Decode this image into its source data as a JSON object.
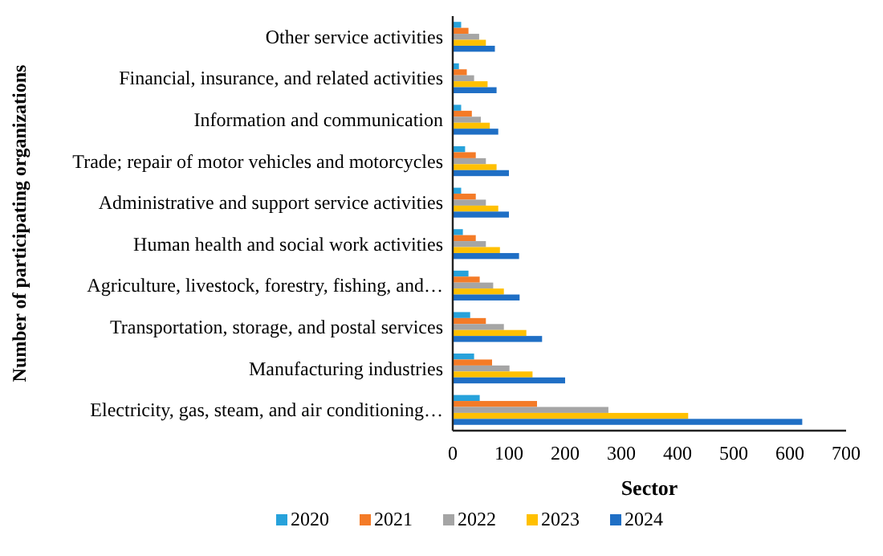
{
  "chart_data": {
    "type": "bar",
    "orientation": "horizontal",
    "xlabel": "Sector",
    "ylabel": "Number of participating organizations",
    "categories": [
      "Other service activities",
      "Financial, insurance, and related activities",
      "Information and communication",
      "Trade; repair of motor vehicles and motorcycles",
      "Administrative and support service activities",
      "Human health and social work activities",
      "Agriculture, livestock, forestry, fishing, and…",
      "Transportation, storage, and postal services",
      "Manufacturing industries",
      "Electricity, gas, steam, and air conditioning…"
    ],
    "series": [
      {
        "name": "2020",
        "color": "#27a2db",
        "values": [
          15,
          11,
          15,
          22,
          15,
          18,
          28,
          31,
          38,
          48
        ]
      },
      {
        "name": "2021",
        "color": "#f47b27",
        "values": [
          28,
          25,
          34,
          41,
          41,
          41,
          48,
          59,
          70,
          150
        ]
      },
      {
        "name": "2022",
        "color": "#a5a5a5",
        "values": [
          47,
          38,
          50,
          59,
          59,
          59,
          72,
          91,
          101,
          277
        ]
      },
      {
        "name": "2023",
        "color": "#ffc000",
        "values": [
          59,
          62,
          66,
          78,
          81,
          84,
          91,
          131,
          142,
          419
        ]
      },
      {
        "name": "2024",
        "color": "#1f6fc5",
        "values": [
          75,
          78,
          81,
          100,
          100,
          118,
          119,
          159,
          200,
          622
        ]
      }
    ],
    "xlim": [
      0,
      700
    ],
    "xticks": [
      0,
      100,
      200,
      300,
      400,
      500,
      600,
      700
    ],
    "grid": false,
    "legend": "bottom"
  }
}
